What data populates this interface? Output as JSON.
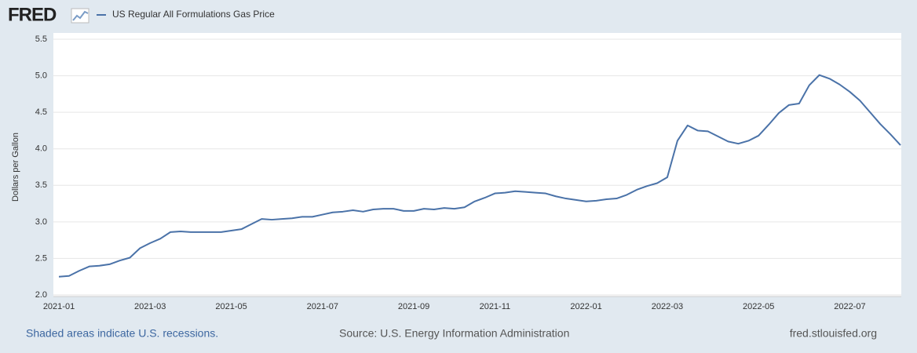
{
  "header": {
    "logo": "FRED"
  },
  "chart_data": {
    "type": "line",
    "y_label": "Dollars per Gallon",
    "categories": [
      "2021-01",
      null,
      null,
      null,
      null,
      null,
      null,
      null,
      null,
      "2021-03",
      null,
      null,
      null,
      null,
      null,
      null,
      null,
      "2021-05",
      null,
      null,
      null,
      null,
      null,
      null,
      null,
      null,
      "2021-07",
      null,
      null,
      null,
      null,
      null,
      null,
      null,
      null,
      "2021-09",
      null,
      null,
      null,
      null,
      null,
      null,
      null,
      "2021-11",
      null,
      null,
      null,
      null,
      null,
      null,
      null,
      null,
      "2022-01",
      null,
      null,
      null,
      null,
      null,
      null,
      null,
      "2022-03",
      null,
      null,
      null,
      null,
      null,
      null,
      null,
      null,
      "2022-05",
      null,
      null,
      null,
      null,
      null,
      null,
      null,
      null,
      "2022-07",
      null,
      null,
      null,
      null,
      null
    ],
    "series": [
      {
        "name": "US Regular All Formulations Gas Price",
        "color": "#4a72a8",
        "values": [
          2.25,
          2.26,
          2.33,
          2.39,
          2.4,
          2.42,
          2.47,
          2.51,
          2.64,
          2.71,
          2.77,
          2.86,
          2.87,
          2.86,
          2.86,
          2.86,
          2.86,
          2.88,
          2.9,
          2.97,
          3.04,
          3.03,
          3.04,
          3.05,
          3.07,
          3.07,
          3.1,
          3.13,
          3.14,
          3.16,
          3.14,
          3.17,
          3.18,
          3.18,
          3.15,
          3.15,
          3.18,
          3.17,
          3.19,
          3.18,
          3.2,
          3.28,
          3.33,
          3.39,
          3.4,
          3.42,
          3.41,
          3.4,
          3.39,
          3.35,
          3.32,
          3.3,
          3.28,
          3.29,
          3.31,
          3.32,
          3.37,
          3.44,
          3.49,
          3.53,
          3.61,
          4.11,
          4.32,
          4.25,
          4.24,
          4.17,
          4.1,
          4.07,
          4.11,
          4.18,
          4.33,
          4.49,
          4.6,
          4.62,
          4.87,
          5.01,
          4.96,
          4.88,
          4.78,
          4.66,
          4.5,
          4.34,
          4.2,
          4.05
        ]
      }
    ],
    "ylim": [
      2.0,
      5.5
    ],
    "yticks": [
      {
        "value": 2,
        "label": "2.0"
      },
      2.5,
      {
        "value": 3,
        "label": "3.0"
      },
      3.5,
      {
        "value": 4,
        "label": "4.0"
      },
      4.5,
      {
        "value": 5,
        "label": "5.0"
      },
      5.5
    ],
    "grid": true
  },
  "footer": {
    "recessions": "Shaded areas indicate U.S. recessions.",
    "source": "Source: U.S. Energy Information Administration",
    "site": "fred.stlouisfed.org"
  }
}
